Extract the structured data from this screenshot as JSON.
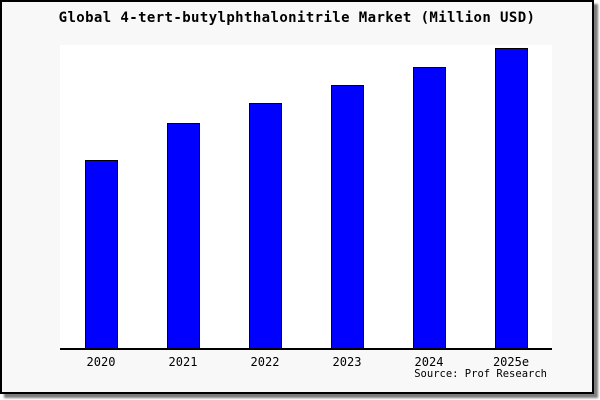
{
  "window": {
    "title": "Global 4-tert-butylphthalonitrile Market (Million USD)"
  },
  "chart_data": {
    "type": "bar",
    "title": "Global 4-tert-butylphthalonitrile Market (Million USD)",
    "categories": [
      "2020",
      "2021",
      "2022",
      "2023",
      "2024",
      "2025e"
    ],
    "values": [
      62.7,
      75.0,
      81.7,
      87.7,
      93.7,
      100.0
    ],
    "xlabel": "",
    "ylabel": "",
    "ylim": [
      0,
      101.7
    ],
    "grid": false,
    "legend": null,
    "y_axis_visible": false,
    "value_labels_shown": false
  },
  "source_note": "Source: Prof Research",
  "colors": {
    "bar_fill": "#0000ff",
    "bar_edge": "#000000",
    "frame_background": "#f8f8f8",
    "plot_background": "#ffffff",
    "axis_line": "#000000",
    "frame_border": "#000000",
    "text": "#000000"
  }
}
